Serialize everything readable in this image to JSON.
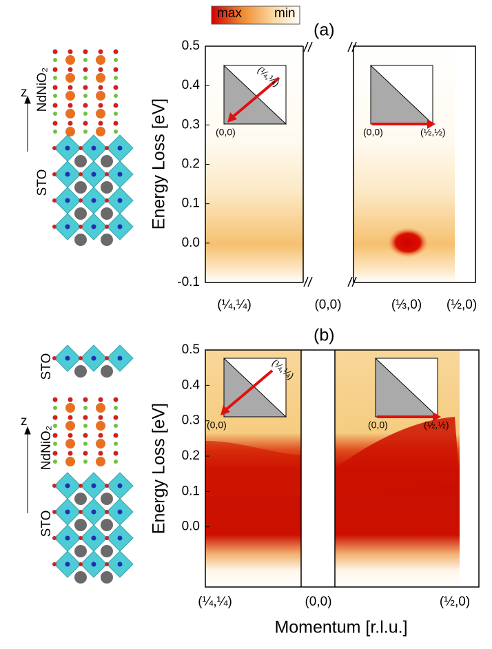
{
  "figure": {
    "colorbar": {
      "max": "max",
      "min": "min"
    },
    "xlabel": "Momentum [r.l.u.]",
    "panels": [
      {
        "label": "(a)",
        "ylabel": "Energy Loss [eV]",
        "ylim": [
          -0.1,
          0.5
        ],
        "yticks": [
          -0.1,
          {
            "value": 0,
            "label": "0.0"
          },
          0.1,
          0.2,
          0.3,
          0.4,
          0.5
        ],
        "xtick_labels": [
          "(¼,¼)",
          "(0,0)",
          "(⅓,0)",
          "(½,0)"
        ],
        "structure": {
          "axis": "z",
          "layers": [
            "NdNiO₂",
            "STO"
          ]
        },
        "insets": [
          {
            "corner": "(¼,¼)",
            "origin": "(0,0)"
          },
          {
            "origin": "(0,0)",
            "end": "(½,½)"
          }
        ]
      },
      {
        "label": "(b)",
        "ylabel": "Energy Loss [eV]",
        "ylim": [
          -0.17,
          0.5
        ],
        "yticks": [
          {
            "value": 0,
            "label": "0.0"
          },
          0.1,
          0.2,
          0.3,
          0.4,
          0.5
        ],
        "xtick_labels": [
          "(¼,¼)",
          "(0,0)",
          "(½,0)"
        ],
        "structure": {
          "axis": "z",
          "layers": [
            "STO",
            "NdNiO₂",
            "STO"
          ]
        },
        "insets": [
          {
            "corner": "(¼,¼)",
            "origin": "(0,0)"
          },
          {
            "origin": "(0,0)",
            "end": "(½,½)"
          }
        ]
      }
    ]
  }
}
